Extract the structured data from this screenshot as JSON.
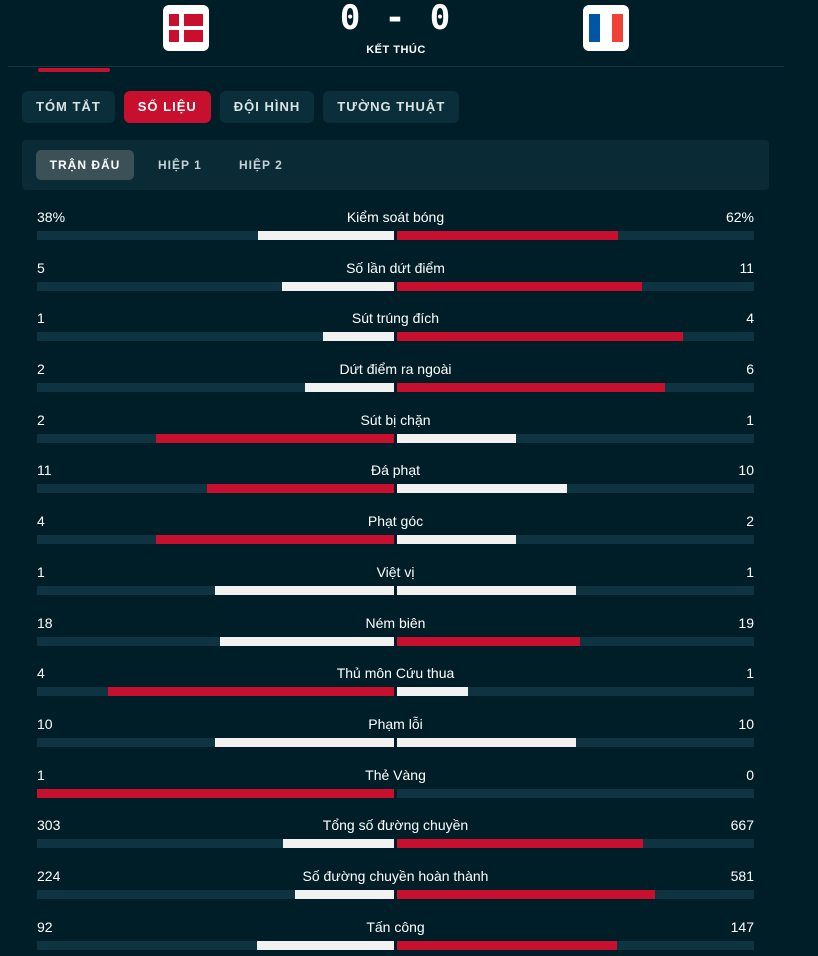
{
  "match": {
    "home_flag": "denmark-flag-icon",
    "away_flag": "france-flag-icon",
    "score": "0 - 0",
    "status": "KẾT THÚC"
  },
  "tabs": [
    {
      "label": "TÓM TẮT",
      "active": false
    },
    {
      "label": "SỐ LIỆU",
      "active": true
    },
    {
      "label": "ĐỘI HÌNH",
      "active": false
    },
    {
      "label": "TƯỜNG THUẬT",
      "active": false
    }
  ],
  "subtabs": [
    {
      "label": "TRẬN ĐẤU",
      "active": true
    },
    {
      "label": "HIỆP 1",
      "active": false
    },
    {
      "label": "HIỆP 2",
      "active": false
    }
  ],
  "colors": {
    "background": "#001e28",
    "accent": "#c8102e",
    "bar_higher": "#c8102e",
    "bar_lower": "#f2f2f2",
    "track": "#0e3441",
    "denmark_red": "#c8102e",
    "france_blue": "#0055a4",
    "france_white": "#ffffff",
    "france_red": "#ef4135"
  },
  "stats": [
    {
      "label": "Kiểm soát bóng",
      "home": "38%",
      "away": "62%",
      "home_share": 0.38,
      "away_share": 0.62
    },
    {
      "label": "Số lần dứt điểm",
      "home": "5",
      "away": "11",
      "home_share": 0.3125,
      "away_share": 0.6875
    },
    {
      "label": "Sút trúng đích",
      "home": "1",
      "away": "4",
      "home_share": 0.2,
      "away_share": 0.8
    },
    {
      "label": "Dứt điểm ra ngoài",
      "home": "2",
      "away": "6",
      "home_share": 0.25,
      "away_share": 0.75
    },
    {
      "label": "Sút bị chặn",
      "home": "2",
      "away": "1",
      "home_share": 0.667,
      "away_share": 0.333
    },
    {
      "label": "Đá phạt",
      "home": "11",
      "away": "10",
      "home_share": 0.524,
      "away_share": 0.476
    },
    {
      "label": "Phạt góc",
      "home": "4",
      "away": "2",
      "home_share": 0.667,
      "away_share": 0.333
    },
    {
      "label": "Việt vị",
      "home": "1",
      "away": "1",
      "home_share": 0.5,
      "away_share": 0.5
    },
    {
      "label": "Ném biên",
      "home": "18",
      "away": "19",
      "home_share": 0.486,
      "away_share": 0.514
    },
    {
      "label": "Thủ môn Cứu thua",
      "home": "4",
      "away": "1",
      "home_share": 0.8,
      "away_share": 0.2
    },
    {
      "label": "Phạm lỗi",
      "home": "10",
      "away": "10",
      "home_share": 0.5,
      "away_share": 0.5
    },
    {
      "label": "Thẻ Vàng",
      "home": "1",
      "away": "0",
      "home_share": 1.0,
      "away_share": 0.0
    },
    {
      "label": "Tổng số đường chuyền",
      "home": "303",
      "away": "667",
      "home_share": 0.312,
      "away_share": 0.688
    },
    {
      "label": "Số đường chuyền hoàn thành",
      "home": "224",
      "away": "581",
      "home_share": 0.278,
      "away_share": 0.722
    },
    {
      "label": "Tấn công",
      "home": "92",
      "away": "147",
      "home_share": 0.385,
      "away_share": 0.615
    }
  ]
}
